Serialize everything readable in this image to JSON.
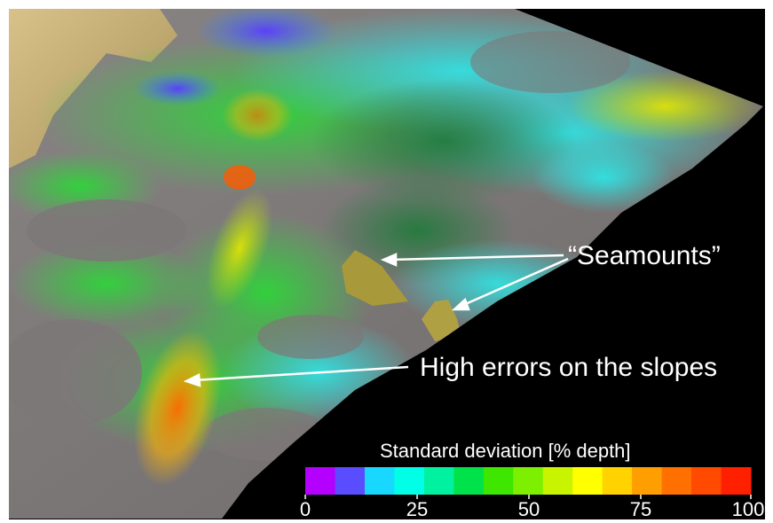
{
  "annotations": {
    "seamounts": "“Seamounts”",
    "slopes": "High errors on the slopes"
  },
  "colorbar": {
    "title": "Standard deviation [% depth]",
    "ticks": [
      "0",
      "25",
      "50",
      "75",
      "100"
    ],
    "colors": [
      "#b400ff",
      "#5a4cff",
      "#18d8ff",
      "#00ffe6",
      "#00f2a0",
      "#00e24a",
      "#3ee600",
      "#7cf000",
      "#c8f400",
      "#ffff00",
      "#ffd200",
      "#ff9e00",
      "#ff7000",
      "#ff4a00",
      "#ff2000"
    ]
  },
  "colors": {
    "background": "#000000",
    "frame": "#ffffff",
    "land": "#c9b174",
    "seafloor_gray": "#7d7878",
    "text": "#ffffff"
  }
}
